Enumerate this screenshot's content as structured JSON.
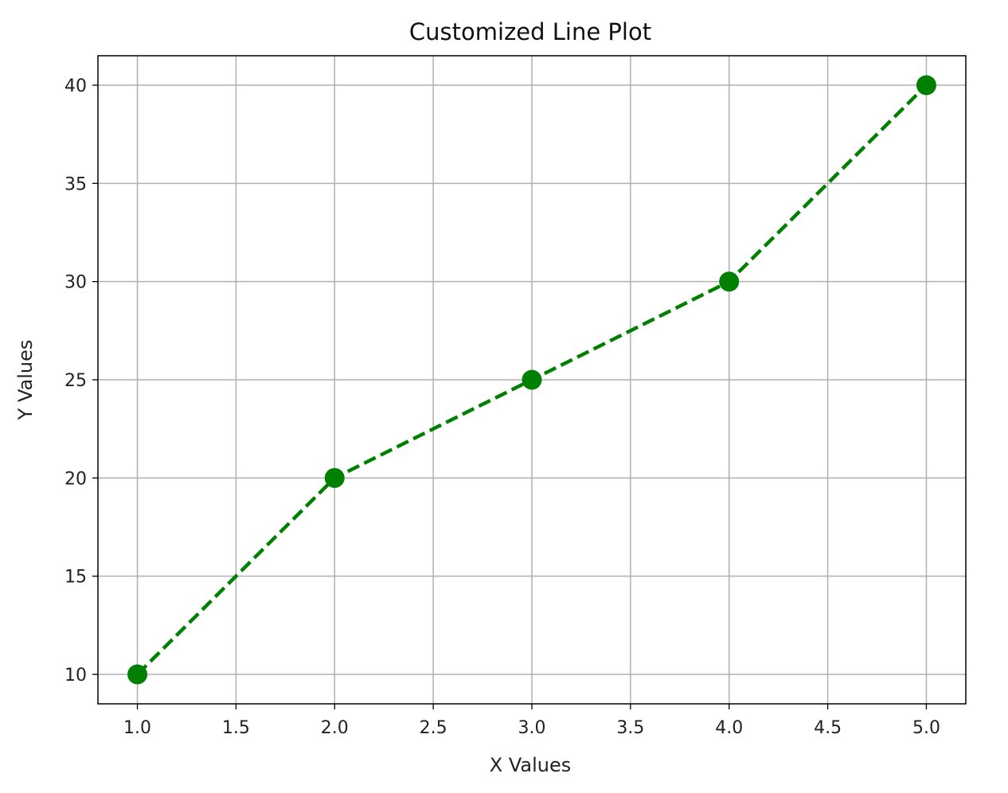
{
  "chart_data": {
    "type": "line",
    "title": "Customized Line Plot",
    "xlabel": "X Values",
    "ylabel": "Y Values",
    "x": [
      1,
      2,
      3,
      4,
      5
    ],
    "series": [
      {
        "values": [
          10,
          20,
          25,
          30,
          40
        ],
        "color": "#008000",
        "line_style": "dashed",
        "marker": "circle"
      }
    ],
    "xlim": [
      0.8,
      5.2
    ],
    "ylim": [
      8.5,
      41.5
    ],
    "xticks": [
      1.0,
      1.5,
      2.0,
      2.5,
      3.0,
      3.5,
      4.0,
      4.5,
      5.0
    ],
    "xtick_labels": [
      "1.0",
      "1.5",
      "2.0",
      "2.5",
      "3.0",
      "3.5",
      "4.0",
      "4.5",
      "5.0"
    ],
    "yticks": [
      10,
      15,
      20,
      25,
      30,
      35,
      40
    ],
    "ytick_labels": [
      "10",
      "15",
      "20",
      "25",
      "30",
      "35",
      "40"
    ],
    "grid": true,
    "legend": "none"
  }
}
